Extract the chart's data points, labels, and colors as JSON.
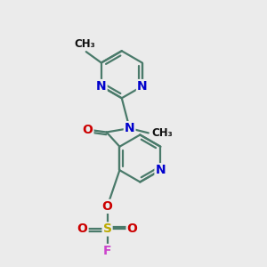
{
  "bg_color": "#ebebeb",
  "bond_color": "#4a7a6a",
  "bond_width": 1.6,
  "atom_colors": {
    "N": "#0000cc",
    "O": "#cc0000",
    "S": "#bbaa00",
    "F": "#cc44cc",
    "C": "#000000"
  },
  "font_size_atom": 10,
  "font_size_small": 8.5
}
